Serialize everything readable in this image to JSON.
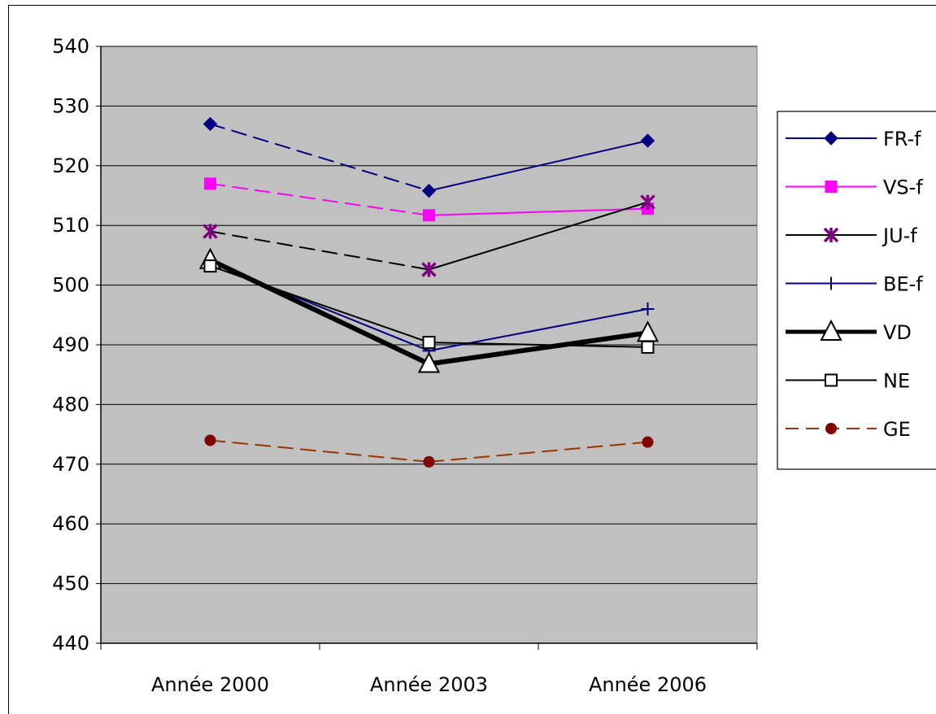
{
  "chart_data": {
    "type": "line",
    "categories": [
      "Année 2000",
      "Année 2003",
      "Année 2006"
    ],
    "ylim": [
      440,
      540
    ],
    "yticks": [
      "440",
      "450",
      "460",
      "470",
      "480",
      "490",
      "500",
      "510",
      "520",
      "530",
      "540"
    ],
    "grid": true,
    "legend_position": "right",
    "plot_background": "#c0c0c0",
    "series": [
      {
        "name": "FR-f",
        "values": [
          527,
          515.8,
          524.2
        ],
        "color": "#000080",
        "marker": "diamond",
        "dash_first_segment": true,
        "width": 2
      },
      {
        "name": "VS-f",
        "values": [
          517,
          511.7,
          512.8
        ],
        "color": "#ff00ff",
        "marker": "square",
        "dash_first_segment": true,
        "width": 2
      },
      {
        "name": "JU-f",
        "values": [
          509,
          502.6,
          513.9
        ],
        "color": "#000000",
        "marker_color": "#800080",
        "marker": "star",
        "dash_first_segment": true,
        "width": 2
      },
      {
        "name": "BE-f",
        "values": [
          503.8,
          489,
          496
        ],
        "color": "#000080",
        "marker": "plus",
        "dash_first_segment": false,
        "width": 2
      },
      {
        "name": "VD",
        "values": [
          504.2,
          486.8,
          492
        ],
        "color": "#000000",
        "marker": "triangle",
        "dash_first_segment": false,
        "width": 6
      },
      {
        "name": "NE",
        "values": [
          503.2,
          490.4,
          489.6
        ],
        "color": "#000000",
        "marker": "square-open",
        "dash_first_segment": false,
        "width": 2
      },
      {
        "name": "GE",
        "values": [
          474,
          470.4,
          473.7
        ],
        "color": "#993300",
        "marker_color": "#800000",
        "marker": "circle",
        "dash_all": true,
        "width": 2
      }
    ]
  }
}
